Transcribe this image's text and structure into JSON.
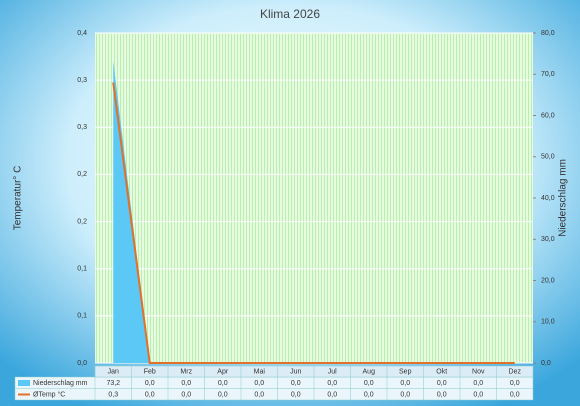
{
  "chart_data": {
    "type": "combo",
    "title": "Klima 2026",
    "ylabel": "Temperatur° C",
    "y2label": "Niederschlag mm",
    "categories": [
      "Jan",
      "Feb",
      "Mrz",
      "Apr",
      "Mai",
      "Jun",
      "Jul",
      "Aug",
      "Sep",
      "Okt",
      "Nov",
      "Dez"
    ],
    "ylim": [
      0,
      0.4
    ],
    "yticks": [
      {
        "value": 0,
        "label": "0,0"
      },
      {
        "value": 0.0571,
        "label": "0,1"
      },
      {
        "value": 0.1143,
        "label": "0,1"
      },
      {
        "value": 0.1714,
        "label": "0,2"
      },
      {
        "value": 0.2286,
        "label": "0,2"
      },
      {
        "value": 0.2857,
        "label": "0,3"
      },
      {
        "value": 0.3429,
        "label": "0,3"
      },
      {
        "value": 0.4,
        "label": "0,4"
      }
    ],
    "y2lim": [
      0,
      80
    ],
    "y2ticks": [
      {
        "value": 0,
        "label": "0,0"
      },
      {
        "value": 10,
        "label": "10,0"
      },
      {
        "value": 20,
        "label": "20,0"
      },
      {
        "value": 30,
        "label": "30,0"
      },
      {
        "value": 40,
        "label": "40,0"
      },
      {
        "value": 50,
        "label": "50,0"
      },
      {
        "value": 60,
        "label": "60,0"
      },
      {
        "value": 70,
        "label": "70,0"
      },
      {
        "value": 80,
        "label": "80,0"
      }
    ],
    "grid": true,
    "series": [
      {
        "name": "Niederschlag mm",
        "type": "area",
        "axis": "y2",
        "color": "#5bc8f5",
        "values": [
          73.2,
          0,
          0,
          0,
          0,
          0,
          0,
          0,
          0,
          0,
          0,
          0
        ],
        "value_labels": [
          "73,2",
          "0,0",
          "0,0",
          "0,0",
          "0,0",
          "0,0",
          "0,0",
          "0,0",
          "0,0",
          "0,0",
          "0,0",
          "0,0"
        ]
      },
      {
        "name": "ØTemp °C",
        "type": "line",
        "color": "#e0702a",
        "values": [
          0.34,
          0,
          0,
          0,
          0,
          0,
          0,
          0,
          0,
          0,
          0,
          0
        ],
        "value_labels": [
          "0,3",
          "0,0",
          "0,0",
          "0,0",
          "0,0",
          "0,0",
          "0,0",
          "0,0",
          "0,0",
          "0,0",
          "0,0",
          "0,0"
        ]
      }
    ]
  }
}
